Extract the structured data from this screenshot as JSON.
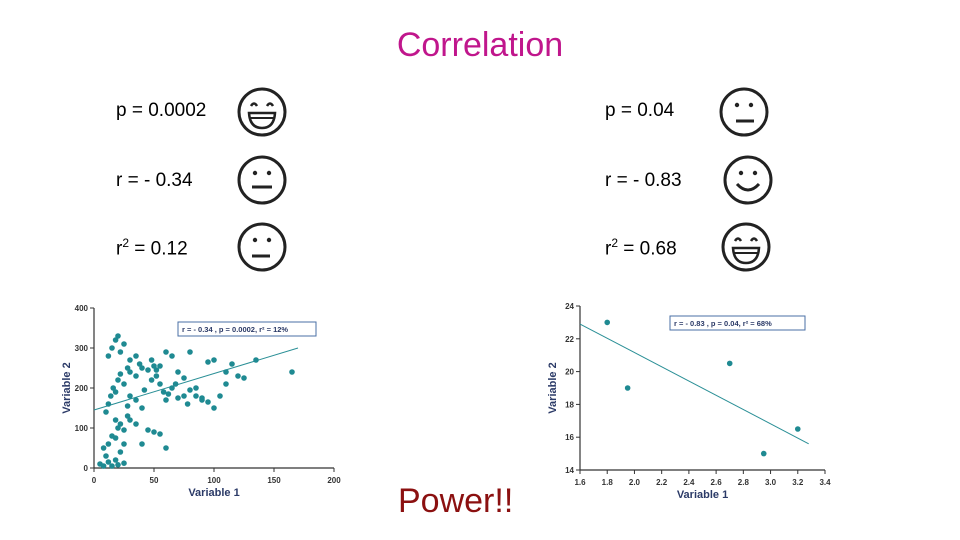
{
  "title": "Correlation",
  "left_stats": {
    "p": "p = 0.0002",
    "r": "r = - 0.34",
    "r2_prefix": "r",
    "r2_sup": "2",
    "r2_value": " = 0.12"
  },
  "right_stats": {
    "p": "p = 0.04",
    "r": "r = - 0.83",
    "r2_prefix": "r",
    "r2_sup": "2",
    "r2_value": " = 0.68"
  },
  "faces": {
    "left": [
      "grin-face-icon",
      "neutral-face-icon",
      "neutral-face-icon"
    ],
    "right": [
      "neutral-face-icon",
      "smile-face-icon",
      "grin-face-icon"
    ]
  },
  "footer": "Power!!",
  "colors": {
    "title": "#c0168c",
    "footer": "#8b1010",
    "point": "#1f8a92",
    "line": "#2a8f96",
    "legend_border": "#4a6fa5"
  },
  "chart_data": [
    {
      "type": "scatter",
      "title": "",
      "xlabel": "Variable 1",
      "ylabel": "Variable 2",
      "xlim": [
        0,
        200
      ],
      "ylim": [
        0,
        400
      ],
      "xticks": [
        0,
        50,
        100,
        150,
        200
      ],
      "yticks": [
        0,
        100,
        200,
        300,
        400
      ],
      "legend": "r = - 0.34 , p = 0.0002, r² = 12%",
      "trendline": {
        "x": [
          0,
          170
        ],
        "y": [
          145,
          300
        ]
      },
      "points": [
        [
          5,
          10
        ],
        [
          8,
          5
        ],
        [
          10,
          30
        ],
        [
          12,
          15
        ],
        [
          15,
          5
        ],
        [
          18,
          20
        ],
        [
          20,
          8
        ],
        [
          22,
          40
        ],
        [
          25,
          12
        ],
        [
          8,
          50
        ],
        [
          12,
          60
        ],
        [
          15,
          80
        ],
        [
          18,
          75
        ],
        [
          20,
          100
        ],
        [
          22,
          110
        ],
        [
          25,
          95
        ],
        [
          28,
          130
        ],
        [
          30,
          120
        ],
        [
          10,
          140
        ],
        [
          12,
          160
        ],
        [
          14,
          180
        ],
        [
          16,
          200
        ],
        [
          18,
          190
        ],
        [
          20,
          220
        ],
        [
          22,
          235
        ],
        [
          25,
          210
        ],
        [
          28,
          250
        ],
        [
          30,
          240
        ],
        [
          35,
          230
        ],
        [
          38,
          260
        ],
        [
          12,
          280
        ],
        [
          15,
          300
        ],
        [
          18,
          320
        ],
        [
          20,
          330
        ],
        [
          22,
          290
        ],
        [
          25,
          310
        ],
        [
          30,
          270
        ],
        [
          35,
          280
        ],
        [
          40,
          250
        ],
        [
          45,
          245
        ],
        [
          48,
          270
        ],
        [
          50,
          255
        ],
        [
          52,
          230
        ],
        [
          55,
          210
        ],
        [
          58,
          190
        ],
        [
          60,
          170
        ],
        [
          62,
          185
        ],
        [
          65,
          200
        ],
        [
          68,
          210
        ],
        [
          70,
          175
        ],
        [
          75,
          180
        ],
        [
          78,
          160
        ],
        [
          80,
          195
        ],
        [
          85,
          200
        ],
        [
          90,
          175
        ],
        [
          95,
          165
        ],
        [
          100,
          150
        ],
        [
          105,
          180
        ],
        [
          110,
          240
        ],
        [
          115,
          260
        ],
        [
          120,
          230
        ],
        [
          125,
          225
        ],
        [
          135,
          270
        ],
        [
          165,
          240
        ],
        [
          30,
          180
        ],
        [
          35,
          170
        ],
        [
          40,
          150
        ],
        [
          45,
          95
        ],
        [
          50,
          90
        ],
        [
          55,
          85
        ],
        [
          60,
          50
        ],
        [
          40,
          60
        ],
        [
          35,
          110
        ],
        [
          25,
          60
        ],
        [
          18,
          120
        ],
        [
          28,
          155
        ],
        [
          42,
          195
        ],
        [
          55,
          255
        ],
        [
          65,
          280
        ],
        [
          80,
          290
        ],
        [
          95,
          265
        ],
        [
          100,
          270
        ],
        [
          110,
          210
        ],
        [
          70,
          240
        ],
        [
          48,
          220
        ],
        [
          52,
          245
        ],
        [
          60,
          290
        ],
        [
          75,
          225
        ],
        [
          85,
          180
        ],
        [
          90,
          170
        ]
      ]
    },
    {
      "type": "scatter",
      "title": "",
      "xlabel": "Variable 1",
      "ylabel": "Variable 2",
      "xlim": [
        1.6,
        3.4
      ],
      "ylim": [
        14,
        24
      ],
      "xticks": [
        1.6,
        1.8,
        2.0,
        2.2,
        2.4,
        2.6,
        2.8,
        3.0,
        3.2,
        3.4
      ],
      "yticks": [
        14,
        16,
        18,
        20,
        22,
        24
      ],
      "legend": "r = - 0.83 , p = 0.04, r² = 68%",
      "trendline": {
        "x": [
          1.6,
          3.28
        ],
        "y": [
          22.9,
          15.6
        ]
      },
      "points": [
        [
          1.8,
          23
        ],
        [
          1.95,
          19
        ],
        [
          2.7,
          20.5
        ],
        [
          2.95,
          15
        ],
        [
          3.2,
          16.5
        ]
      ]
    }
  ]
}
